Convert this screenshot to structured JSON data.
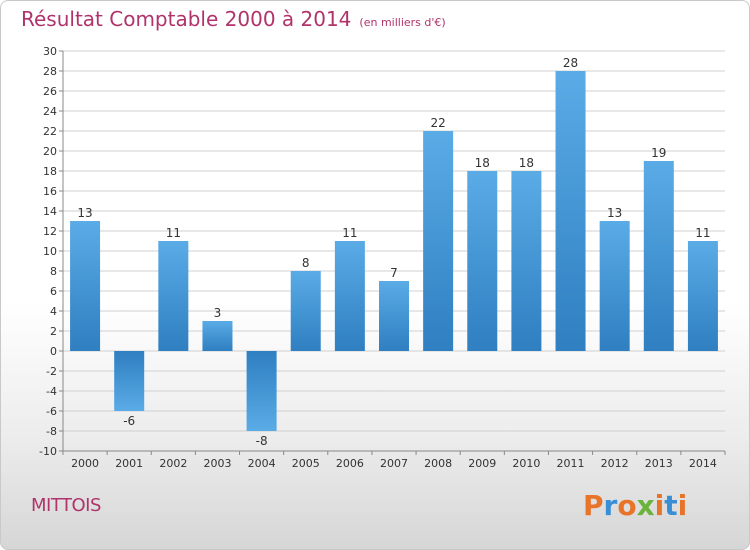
{
  "header": {
    "title": "Résultat Comptable 2000 à 2014",
    "subtitle": "(en milliers d'€)"
  },
  "footer": {
    "commune": "MITTOIS",
    "logo": "Proxiti"
  },
  "colors": {
    "title": "#b0336b",
    "bar_light": "#5aabe6",
    "bar_dark": "#2f7fc1",
    "grid": "#d0d0d0",
    "logo": [
      "#e8742a",
      "#3a8ed6",
      "#e8742a",
      "#6ab43c",
      "#e8742a",
      "#3a8ed6",
      "#e8742a"
    ]
  },
  "chart_data": {
    "type": "bar",
    "title": "Résultat Comptable 2000 à 2014",
    "subtitle": "(en milliers d'€)",
    "categories": [
      "2000",
      "2001",
      "2002",
      "2003",
      "2004",
      "2005",
      "2006",
      "2007",
      "2008",
      "2009",
      "2010",
      "2011",
      "2012",
      "2013",
      "2014"
    ],
    "values": [
      13,
      -6,
      11,
      3,
      -8,
      8,
      11,
      7,
      22,
      18,
      18,
      28,
      13,
      19,
      11
    ],
    "value_labels": [
      "13",
      "-6",
      "11",
      "3",
      "-8",
      "8",
      "11",
      "7",
      "22",
      "18",
      "18",
      "28",
      "13",
      "19",
      "11"
    ],
    "yticks": [
      "-10",
      "-8",
      "-6",
      "-4",
      "-2",
      "0",
      "2",
      "4",
      "6",
      "8",
      "10",
      "12",
      "14",
      "16",
      "18",
      "20",
      "22",
      "24",
      "26",
      "28",
      "30"
    ],
    "ylim": [
      -10,
      30
    ],
    "grid": true
  }
}
